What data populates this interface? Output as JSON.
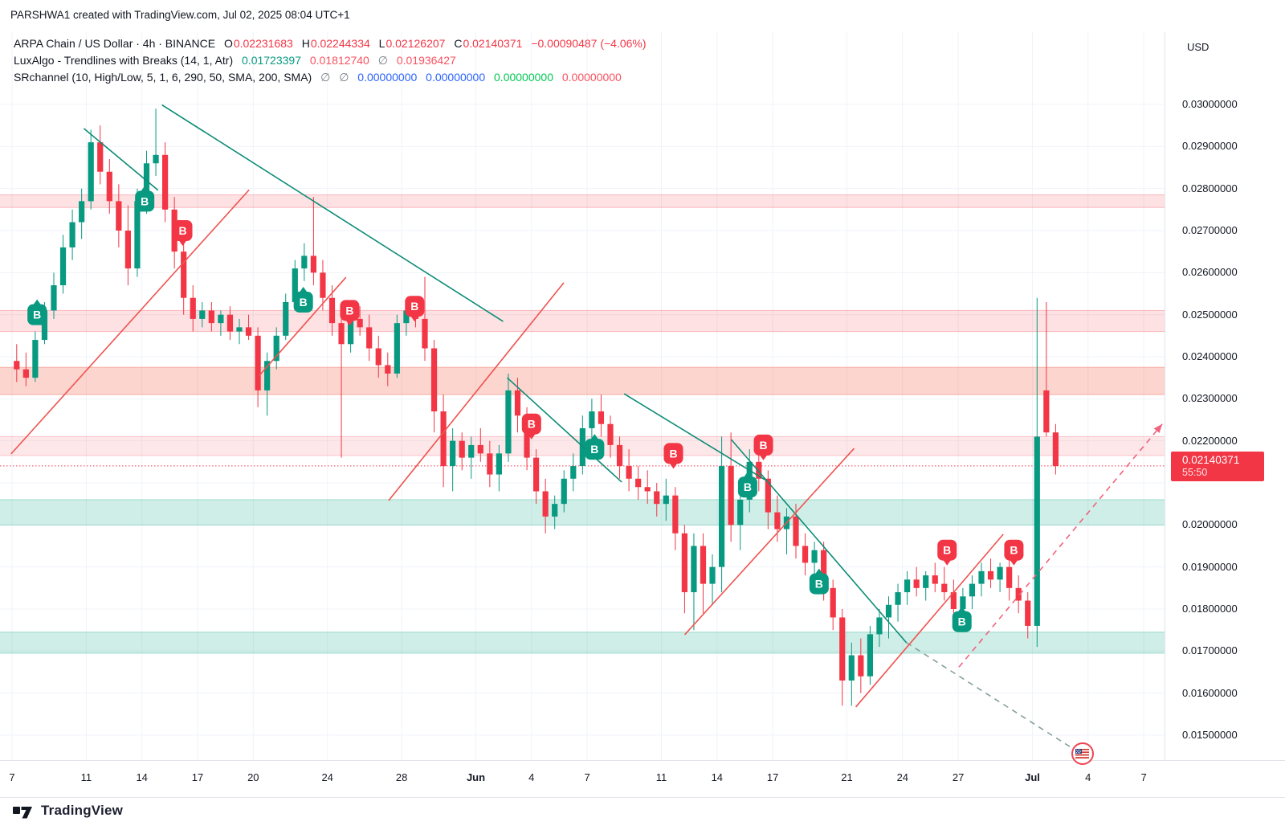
{
  "attribution": "PARSHWA1 created with TradingView.com, Jul 02, 2025 08:04 UTC+1",
  "legend": {
    "row1": {
      "title": "ARPA Chain / US Dollar · 4h · BINANCE",
      "o_label": "O",
      "o": "0.02231683",
      "h_label": "H",
      "h": "0.02244334",
      "l_label": "L",
      "l": "0.02126207",
      "c_label": "C",
      "c": "0.02140371",
      "change": "−0.00090487 (−4.06%)"
    },
    "row2": {
      "title": "LuxAlgo - Trendlines with Breaks (14, 1, Atr)",
      "upper": "0.01723397",
      "lower": "0.01812740",
      "empty": "∅",
      "avg": "0.01936427"
    },
    "row3": {
      "title": "SRchannel (10, High/Low, 5, 1, 6, 290, 50, SMA, 200, SMA)",
      "empty1": "∅",
      "empty2": "∅",
      "v1": "0.00000000",
      "v2": "0.00000000",
      "v3": "0.00000000",
      "v4": "0.00000000"
    }
  },
  "price_axis": {
    "currency": "USD",
    "price_tag": {
      "price": "0.02140371",
      "countdown": "55:50"
    }
  },
  "footer": {
    "brand": "TradingView"
  },
  "colors": {
    "up": "#089981",
    "down": "#f23645",
    "teal_line": "#0d8c77",
    "teal_dashed": "#86a09b",
    "red_line": "#ef5350",
    "red_dashed": "#f0647e",
    "grid": "#f0f3fa",
    "axis_text": "#131722",
    "band_res": "rgba(242,54,69,0.15)",
    "band_res_strong": "rgba(243,91,70,0.26)",
    "band_res_soft": "rgba(242,54,69,0.12)",
    "band_sup": "rgba(16,169,133,0.20)",
    "current_price_line": "#f23645",
    "tag_bg": "#f23645"
  },
  "chart_data": {
    "type": "candlestick",
    "symbol": "ARPA Chain / US Dollar",
    "interval": "4h",
    "exchange": "BINANCE",
    "x_domain_days": [
      "May 7 = 0",
      "Jul 7 = 61"
    ],
    "y_domain": [
      0.0145,
      0.0302
    ],
    "grid": true,
    "current_price": 0.02140371,
    "y_axis_ticks": [
      {
        "price": 0.03,
        "label": "0.03000000"
      },
      {
        "price": 0.029,
        "label": "0.02900000"
      },
      {
        "price": 0.028,
        "label": "0.02800000"
      },
      {
        "price": 0.027,
        "label": "0.02700000"
      },
      {
        "price": 0.026,
        "label": "0.02600000"
      },
      {
        "price": 0.025,
        "label": "0.02500000"
      },
      {
        "price": 0.024,
        "label": "0.02400000"
      },
      {
        "price": 0.023,
        "label": "0.02300000"
      },
      {
        "price": 0.022,
        "label": "0.02200000"
      },
      {
        "price": 0.021,
        "label": ""
      },
      {
        "price": 0.02,
        "label": "0.02000000"
      },
      {
        "price": 0.019,
        "label": "0.01900000"
      },
      {
        "price": 0.018,
        "label": "0.01800000"
      },
      {
        "price": 0.017,
        "label": "0.01700000"
      },
      {
        "price": 0.016,
        "label": "0.01600000"
      },
      {
        "price": 0.015,
        "label": "0.01500000"
      }
    ],
    "x_axis_labels": [
      {
        "d": 0,
        "text": "7",
        "bold": false
      },
      {
        "d": 4,
        "text": "11",
        "bold": false
      },
      {
        "d": 7,
        "text": "14",
        "bold": false
      },
      {
        "d": 10,
        "text": "17",
        "bold": false
      },
      {
        "d": 13,
        "text": "20",
        "bold": false
      },
      {
        "d": 17,
        "text": "24",
        "bold": false
      },
      {
        "d": 21,
        "text": "28",
        "bold": false
      },
      {
        "d": 25,
        "text": "Jun",
        "bold": true
      },
      {
        "d": 28,
        "text": "4",
        "bold": false
      },
      {
        "d": 31,
        "text": "7",
        "bold": false
      },
      {
        "d": 35,
        "text": "11",
        "bold": false
      },
      {
        "d": 38,
        "text": "14",
        "bold": false
      },
      {
        "d": 41,
        "text": "17",
        "bold": false
      },
      {
        "d": 45,
        "text": "21",
        "bold": false
      },
      {
        "d": 48,
        "text": "24",
        "bold": false
      },
      {
        "d": 51,
        "text": "27",
        "bold": false
      },
      {
        "d": 55,
        "text": "Jul",
        "bold": true
      },
      {
        "d": 58,
        "text": "4",
        "bold": false
      },
      {
        "d": 61,
        "text": "7",
        "bold": false
      }
    ],
    "sr_bands": [
      {
        "from": 0.02755,
        "to": 0.02785,
        "kind": "res"
      },
      {
        "from": 0.0246,
        "to": 0.0251,
        "kind": "res"
      },
      {
        "from": 0.0231,
        "to": 0.02375,
        "kind": "res_strong"
      },
      {
        "from": 0.02165,
        "to": 0.0221,
        "kind": "res_soft"
      },
      {
        "from": 0.02,
        "to": 0.0206,
        "kind": "sup"
      },
      {
        "from": 0.01695,
        "to": 0.01745,
        "kind": "sup"
      }
    ],
    "trendlines": [
      {
        "color": "teal",
        "dashed": false,
        "pts": [
          3.87,
          0.02943,
          7.87,
          0.02796
        ]
      },
      {
        "color": "teal",
        "dashed": false,
        "pts": [
          8.08,
          0.02999,
          26.47,
          0.02484
        ]
      },
      {
        "color": "teal",
        "dashed": false,
        "pts": [
          26.69,
          0.0235,
          32.86,
          0.02102
        ]
      },
      {
        "color": "teal",
        "dashed": false,
        "pts": [
          32.99,
          0.02312,
          40.6,
          0.02107
        ]
      },
      {
        "color": "teal",
        "dashed": false,
        "pts": [
          38.77,
          0.02203,
          48.21,
          0.0172
        ]
      },
      {
        "color": "teal",
        "dashed": true,
        "pts": [
          48.21,
          0.0172,
          57.47,
          0.0146
        ]
      },
      {
        "color": "red",
        "dashed": false,
        "pts": [
          -0.05,
          0.02169,
          12.78,
          0.02797
        ]
      },
      {
        "color": "red",
        "dashed": false,
        "pts": [
          13.3,
          0.02354,
          18.0,
          0.02589
        ]
      },
      {
        "color": "red",
        "dashed": false,
        "pts": [
          20.3,
          0.02058,
          29.74,
          0.02576
        ]
      },
      {
        "color": "red",
        "dashed": false,
        "pts": [
          36.26,
          0.01739,
          45.39,
          0.02182
        ]
      },
      {
        "color": "red",
        "dashed": false,
        "pts": [
          45.48,
          0.01567,
          53.43,
          0.01978
        ]
      },
      {
        "color": "red",
        "dashed": true,
        "pts": [
          51.04,
          0.01662,
          62.0,
          0.0224
        ],
        "arrow": true
      }
    ],
    "signals": [
      {
        "type": "buy",
        "label": "B",
        "d": 1.35,
        "price": 0.025
      },
      {
        "type": "buy",
        "label": "B",
        "d": 7.15,
        "price": 0.0277
      },
      {
        "type": "buy",
        "label": "B",
        "d": 15.7,
        "price": 0.0253
      },
      {
        "type": "buy",
        "label": "B",
        "d": 31.4,
        "price": 0.0218
      },
      {
        "type": "buy",
        "label": "B",
        "d": 39.65,
        "price": 0.0209
      },
      {
        "type": "buy",
        "label": "B",
        "d": 43.5,
        "price": 0.0186
      },
      {
        "type": "buy",
        "label": "B",
        "d": 51.2,
        "price": 0.0177
      },
      {
        "type": "sell",
        "label": "B",
        "d": 9.2,
        "price": 0.027
      },
      {
        "type": "sell",
        "label": "B",
        "d": 18.2,
        "price": 0.0251
      },
      {
        "type": "sell",
        "label": "B",
        "d": 21.7,
        "price": 0.0252
      },
      {
        "type": "sell",
        "label": "B",
        "d": 28.0,
        "price": 0.0224
      },
      {
        "type": "sell",
        "label": "B",
        "d": 35.65,
        "price": 0.0217
      },
      {
        "type": "sell",
        "label": "B",
        "d": 40.5,
        "price": 0.0219
      },
      {
        "type": "sell",
        "label": "B",
        "d": 50.4,
        "price": 0.0194
      },
      {
        "type": "sell",
        "label": "B",
        "d": 54.0,
        "price": 0.0194
      }
    ],
    "flag_marker": {
      "d": 57.7,
      "price": 0.01456,
      "icon": "us-flag"
    },
    "candles": [
      [
        0.0,
        0.0239,
        0.0243,
        0.0234,
        0.0237
      ],
      [
        0.5,
        0.0237,
        0.0241,
        0.0233,
        0.0235
      ],
      [
        1.0,
        0.0235,
        0.0246,
        0.0234,
        0.0244
      ],
      [
        1.5,
        0.0244,
        0.0253,
        0.0243,
        0.0251
      ],
      [
        2.0,
        0.0251,
        0.026,
        0.0249,
        0.0257
      ],
      [
        2.5,
        0.0257,
        0.0269,
        0.0255,
        0.0266
      ],
      [
        3.0,
        0.0266,
        0.0275,
        0.0263,
        0.0272
      ],
      [
        3.5,
        0.0272,
        0.028,
        0.0268,
        0.0277
      ],
      [
        4.0,
        0.0277,
        0.0294,
        0.0275,
        0.0291
      ],
      [
        4.5,
        0.0291,
        0.0295,
        0.0281,
        0.0284
      ],
      [
        5.0,
        0.0284,
        0.0287,
        0.0274,
        0.0277
      ],
      [
        5.5,
        0.0277,
        0.0281,
        0.0266,
        0.027
      ],
      [
        6.0,
        0.027,
        0.0276,
        0.0257,
        0.0261
      ],
      [
        6.5,
        0.0261,
        0.028,
        0.0259,
        0.0277
      ],
      [
        7.0,
        0.0277,
        0.0289,
        0.0274,
        0.0286
      ],
      [
        7.5,
        0.0286,
        0.0299,
        0.0283,
        0.0288
      ],
      [
        8.0,
        0.0288,
        0.0291,
        0.0272,
        0.0275
      ],
      [
        8.5,
        0.0275,
        0.0278,
        0.0261,
        0.0265
      ],
      [
        9.0,
        0.0265,
        0.0268,
        0.025,
        0.0254
      ],
      [
        9.5,
        0.0254,
        0.0257,
        0.0246,
        0.0249
      ],
      [
        10.0,
        0.0249,
        0.0253,
        0.0247,
        0.0251
      ],
      [
        10.5,
        0.0251,
        0.0253,
        0.0246,
        0.0248
      ],
      [
        11.0,
        0.0248,
        0.0251,
        0.0245,
        0.025
      ],
      [
        11.5,
        0.025,
        0.0252,
        0.0244,
        0.0246
      ],
      [
        12.0,
        0.0246,
        0.0249,
        0.0243,
        0.0247
      ],
      [
        12.5,
        0.0247,
        0.025,
        0.0244,
        0.0245
      ],
      [
        13.0,
        0.0245,
        0.0247,
        0.0228,
        0.0232
      ],
      [
        13.5,
        0.0232,
        0.0241,
        0.0226,
        0.0239
      ],
      [
        14.0,
        0.0239,
        0.0247,
        0.0237,
        0.0245
      ],
      [
        14.5,
        0.0245,
        0.0255,
        0.0244,
        0.0253
      ],
      [
        15.0,
        0.0253,
        0.0263,
        0.0251,
        0.0261
      ],
      [
        15.5,
        0.0261,
        0.0267,
        0.0258,
        0.0264
      ],
      [
        16.0,
        0.0264,
        0.0278,
        0.0257,
        0.026
      ],
      [
        16.5,
        0.026,
        0.0263,
        0.0251,
        0.0254
      ],
      [
        17.0,
        0.0254,
        0.0257,
        0.0245,
        0.0248
      ],
      [
        17.5,
        0.0248,
        0.0253,
        0.0216,
        0.0243
      ],
      [
        18.0,
        0.0243,
        0.0251,
        0.0241,
        0.0249
      ],
      [
        18.5,
        0.0249,
        0.0252,
        0.0245,
        0.0247
      ],
      [
        19.0,
        0.0247,
        0.025,
        0.0239,
        0.0242
      ],
      [
        19.5,
        0.0242,
        0.0245,
        0.0235,
        0.0238
      ],
      [
        20.0,
        0.0238,
        0.0241,
        0.0233,
        0.0236
      ],
      [
        20.5,
        0.0236,
        0.025,
        0.0235,
        0.0248
      ],
      [
        21.0,
        0.0248,
        0.0253,
        0.0245,
        0.0251
      ],
      [
        21.5,
        0.0251,
        0.0254,
        0.0247,
        0.0249
      ],
      [
        22.0,
        0.0249,
        0.0259,
        0.0239,
        0.0242
      ],
      [
        22.5,
        0.0242,
        0.0244,
        0.0222,
        0.0227
      ],
      [
        23.0,
        0.0227,
        0.0231,
        0.0209,
        0.0214
      ],
      [
        23.5,
        0.0214,
        0.0223,
        0.0208,
        0.022
      ],
      [
        24.0,
        0.022,
        0.0222,
        0.0213,
        0.0216
      ],
      [
        24.5,
        0.0216,
        0.0221,
        0.0211,
        0.0219
      ],
      [
        25.0,
        0.0219,
        0.0223,
        0.0215,
        0.0217
      ],
      [
        25.5,
        0.0217,
        0.022,
        0.0209,
        0.0212
      ],
      [
        26.0,
        0.0212,
        0.0219,
        0.0208,
        0.0217
      ],
      [
        26.5,
        0.0217,
        0.0236,
        0.0215,
        0.0232
      ],
      [
        27.0,
        0.0232,
        0.0235,
        0.0222,
        0.0226
      ],
      [
        27.5,
        0.0226,
        0.0228,
        0.0213,
        0.0216
      ],
      [
        28.0,
        0.0216,
        0.0218,
        0.0205,
        0.0208
      ],
      [
        28.5,
        0.0208,
        0.0211,
        0.0198,
        0.0202
      ],
      [
        29.0,
        0.0202,
        0.0207,
        0.0199,
        0.0205
      ],
      [
        29.5,
        0.0205,
        0.0213,
        0.0203,
        0.0211
      ],
      [
        30.0,
        0.0211,
        0.0217,
        0.0208,
        0.0214
      ],
      [
        30.5,
        0.0214,
        0.0226,
        0.0212,
        0.0223
      ],
      [
        31.0,
        0.0223,
        0.023,
        0.0219,
        0.0227
      ],
      [
        31.5,
        0.0227,
        0.0231,
        0.0221,
        0.0224
      ],
      [
        32.0,
        0.0224,
        0.0226,
        0.0216,
        0.0219
      ],
      [
        32.5,
        0.0219,
        0.0221,
        0.0211,
        0.0214
      ],
      [
        33.0,
        0.0214,
        0.0218,
        0.0208,
        0.0211
      ],
      [
        33.5,
        0.0211,
        0.0214,
        0.0206,
        0.0209
      ],
      [
        34.0,
        0.0209,
        0.0213,
        0.0205,
        0.0208
      ],
      [
        34.5,
        0.0208,
        0.021,
        0.0202,
        0.0205
      ],
      [
        35.0,
        0.0205,
        0.0211,
        0.0201,
        0.0207
      ],
      [
        35.5,
        0.0207,
        0.0209,
        0.0194,
        0.0198
      ],
      [
        36.0,
        0.0198,
        0.02,
        0.0179,
        0.0184
      ],
      [
        36.5,
        0.0184,
        0.0198,
        0.0175,
        0.0195
      ],
      [
        37.0,
        0.0195,
        0.0198,
        0.0179,
        0.0186
      ],
      [
        37.5,
        0.0186,
        0.0193,
        0.0181,
        0.019
      ],
      [
        38.0,
        0.019,
        0.0221,
        0.0184,
        0.0214
      ],
      [
        38.5,
        0.0214,
        0.0222,
        0.0196,
        0.02
      ],
      [
        39.0,
        0.02,
        0.0209,
        0.0194,
        0.0206
      ],
      [
        39.5,
        0.0206,
        0.0218,
        0.0203,
        0.0215
      ],
      [
        40.0,
        0.0215,
        0.0219,
        0.0208,
        0.0211
      ],
      [
        40.5,
        0.0211,
        0.0213,
        0.0199,
        0.0203
      ],
      [
        41.0,
        0.0203,
        0.0207,
        0.0196,
        0.0199
      ],
      [
        41.5,
        0.0199,
        0.0204,
        0.0193,
        0.0202
      ],
      [
        42.0,
        0.0202,
        0.0205,
        0.0192,
        0.0195
      ],
      [
        42.5,
        0.0195,
        0.0198,
        0.0188,
        0.0191
      ],
      [
        43.0,
        0.0191,
        0.0196,
        0.0187,
        0.0194
      ],
      [
        43.5,
        0.0194,
        0.0196,
        0.0182,
        0.0185
      ],
      [
        44.0,
        0.0185,
        0.0187,
        0.0175,
        0.0178
      ],
      [
        44.5,
        0.0178,
        0.018,
        0.0157,
        0.0163
      ],
      [
        45.0,
        0.0163,
        0.0172,
        0.0157,
        0.0169
      ],
      [
        45.5,
        0.0169,
        0.0173,
        0.016,
        0.0164
      ],
      [
        46.0,
        0.0164,
        0.0176,
        0.0162,
        0.0174
      ],
      [
        46.5,
        0.0174,
        0.018,
        0.0171,
        0.0178
      ],
      [
        47.0,
        0.0178,
        0.0183,
        0.0173,
        0.0181
      ],
      [
        47.5,
        0.0181,
        0.0186,
        0.0177,
        0.0184
      ],
      [
        48.0,
        0.0184,
        0.0189,
        0.0181,
        0.0187
      ],
      [
        48.5,
        0.0187,
        0.019,
        0.0183,
        0.0185
      ],
      [
        49.0,
        0.0185,
        0.0189,
        0.0182,
        0.0188
      ],
      [
        49.5,
        0.0188,
        0.0191,
        0.0184,
        0.0186
      ],
      [
        50.0,
        0.0186,
        0.019,
        0.0182,
        0.0184
      ],
      [
        50.5,
        0.0184,
        0.0187,
        0.0177,
        0.018
      ],
      [
        51.0,
        0.018,
        0.0185,
        0.0176,
        0.0183
      ],
      [
        51.5,
        0.0183,
        0.0188,
        0.018,
        0.0186
      ],
      [
        52.0,
        0.0186,
        0.0191,
        0.0183,
        0.0189
      ],
      [
        52.5,
        0.0189,
        0.0192,
        0.0185,
        0.0187
      ],
      [
        53.0,
        0.0187,
        0.0191,
        0.0184,
        0.019
      ],
      [
        53.5,
        0.019,
        0.0192,
        0.0182,
        0.0185
      ],
      [
        54.0,
        0.0185,
        0.0188,
        0.0179,
        0.0182
      ],
      [
        54.5,
        0.0182,
        0.0184,
        0.0173,
        0.0176
      ],
      [
        55.0,
        0.0176,
        0.0254,
        0.0171,
        0.0221
      ],
      [
        55.5,
        0.0232,
        0.0253,
        0.0221,
        0.0222
      ],
      [
        56.0,
        0.0222,
        0.0224,
        0.0212,
        0.0214
      ]
    ]
  }
}
